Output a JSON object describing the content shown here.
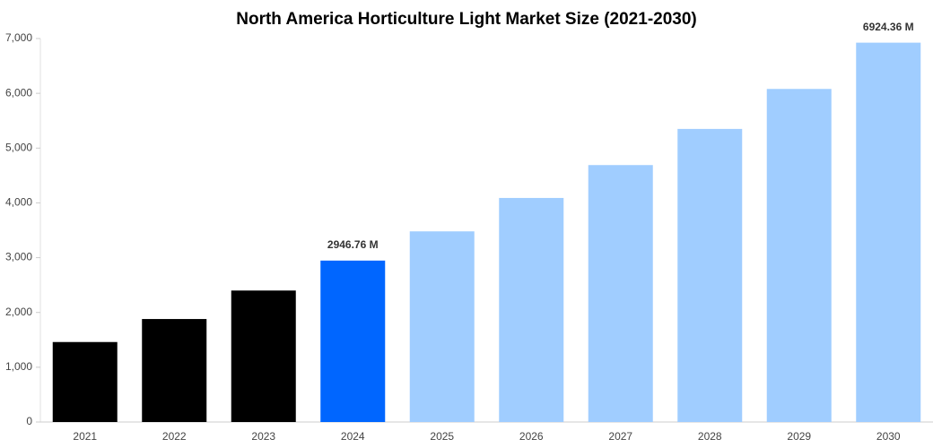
{
  "chart_data": {
    "type": "bar",
    "title": "North America Horticulture Light Market Size (2021-2030)",
    "categories": [
      "2021",
      "2022",
      "2023",
      "2024",
      "2025",
      "2026",
      "2027",
      "2028",
      "2029",
      "2030"
    ],
    "values": [
      1460,
      1880,
      2400,
      2946.76,
      3480,
      4090,
      4690,
      5350,
      6080,
      6924.36
    ],
    "value_labels": [
      null,
      null,
      null,
      "2946.76 M",
      null,
      null,
      null,
      null,
      null,
      "6924.36 M"
    ],
    "colors": [
      "#000000",
      "#000000",
      "#000000",
      "#0066ff",
      "#a0cdff",
      "#a0cdff",
      "#a0cdff",
      "#a0cdff",
      "#a0cdff",
      "#a0cdff"
    ],
    "ylim": [
      0,
      7000
    ],
    "yticks": [
      0,
      {
        "value": 1000,
        "label": "1,000"
      },
      {
        "value": 2000,
        "label": "2,000"
      },
      {
        "value": 3000,
        "label": "3,000"
      },
      {
        "value": 4000,
        "label": "4,000"
      },
      {
        "value": 5000,
        "label": "5,000"
      },
      {
        "value": 6000,
        "label": "6,000"
      },
      {
        "value": 7000,
        "label": "7,000"
      }
    ],
    "grid": false
  }
}
